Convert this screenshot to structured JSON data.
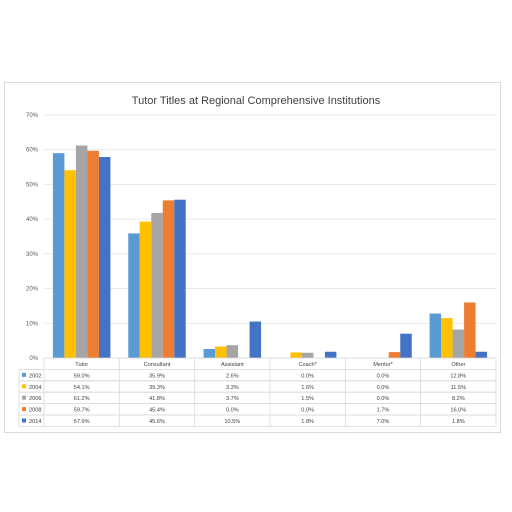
{
  "chart_data": {
    "type": "bar",
    "title": "Tutor Titles at Regional Comprehensive Institutions",
    "categories": [
      "Tutor",
      "Consultant",
      "Assistant",
      "Coach*",
      "Mentor*",
      "Other"
    ],
    "ylim": [
      0,
      70
    ],
    "yticks": [
      "0%",
      "10%",
      "20%",
      "30%",
      "40%",
      "50%",
      "60%",
      "70%"
    ],
    "grid": true,
    "legend": "data-table",
    "series": [
      {
        "name": "2002",
        "color": "#5b9bd5",
        "values": [
          59.0,
          35.9,
          2.6,
          0.0,
          0.0,
          12.8
        ],
        "labels": [
          "59.0%",
          "35.9%",
          "2.6%",
          "0.0%",
          "0.0%",
          "12.8%"
        ]
      },
      {
        "name": "2004",
        "color": "#ffc000",
        "values": [
          54.1,
          39.3,
          3.3,
          1.6,
          0.0,
          11.5
        ],
        "labels": [
          "54.1%",
          "39.3%",
          "3.3%",
          "1.6%",
          "0.0%",
          "11.5%"
        ]
      },
      {
        "name": "2006",
        "color": "#a5a5a5",
        "values": [
          61.2,
          41.8,
          3.7,
          1.5,
          0.0,
          8.2
        ],
        "labels": [
          "61.2%",
          "41.8%",
          "3.7%",
          "1.5%",
          "0.0%",
          "8.2%"
        ]
      },
      {
        "name": "2008",
        "color": "#ed7d31",
        "values": [
          59.7,
          45.4,
          0.0,
          0.0,
          1.7,
          16.0
        ],
        "labels": [
          "59.7%",
          "45.4%",
          "0.0%",
          "0.0%",
          "1.7%",
          "16.0%"
        ]
      },
      {
        "name": "2014",
        "color": "#4472c4",
        "values": [
          57.9,
          45.6,
          10.5,
          1.8,
          7.0,
          1.8
        ],
        "labels": [
          "57.9%",
          "45.6%",
          "10.5%",
          "1.8%",
          "7.0%",
          "1.8%"
        ]
      }
    ]
  }
}
